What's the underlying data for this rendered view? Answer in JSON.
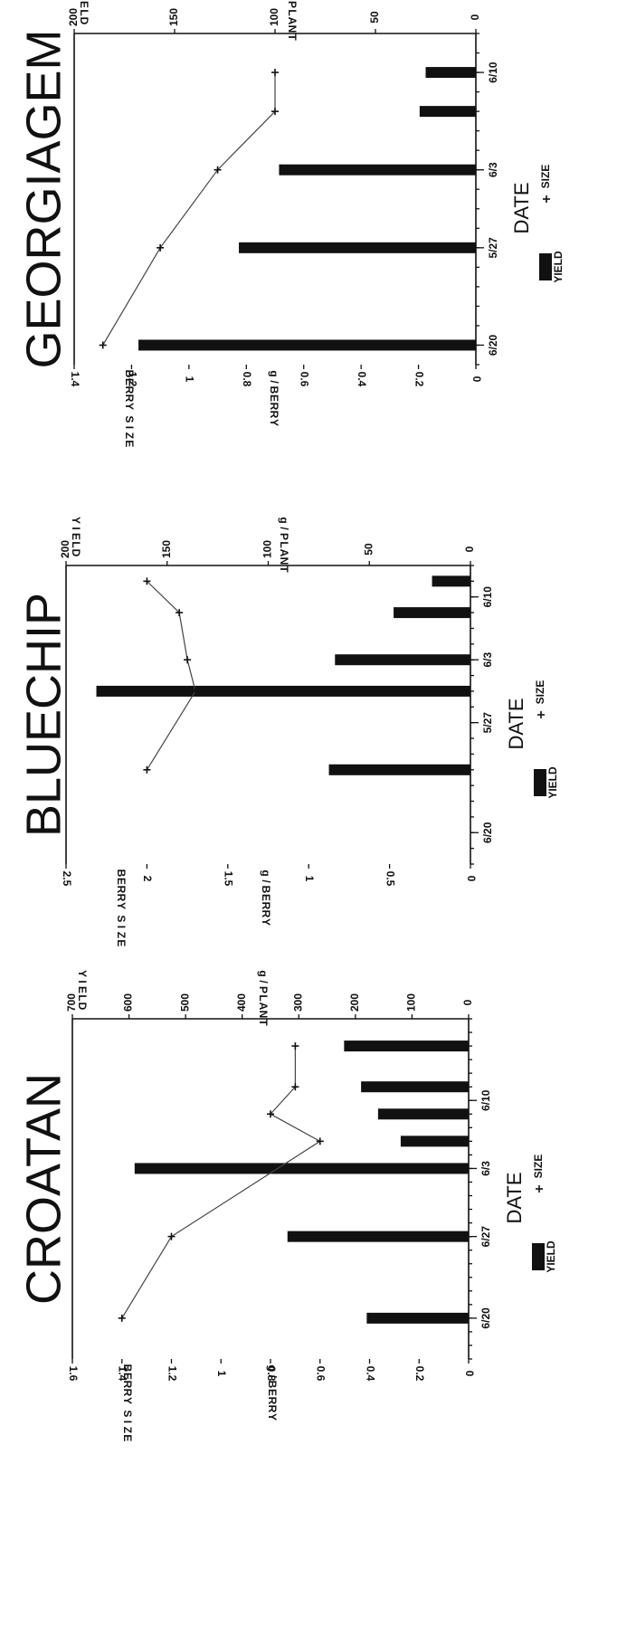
{
  "chart_data": [
    {
      "type": "bar",
      "title": "CROATAN",
      "xlabel": "DATE",
      "x_ticks": [
        "6/20",
        "6/27",
        "6/3",
        "6/10"
      ],
      "dates_days": [
        0,
        6,
        11,
        13,
        15,
        17,
        20
      ],
      "x_range_days": [
        -3,
        22
      ],
      "yield": {
        "label": "YIELD g/PLANT",
        "ticks": [
          0,
          100,
          200,
          300,
          400,
          500,
          600,
          700
        ],
        "ylim": [
          0,
          700
        ],
        "values": [
          180,
          320,
          590,
          120,
          160,
          190,
          220
        ]
      },
      "size": {
        "label": "BERRY SIZE g/BERRY",
        "ticks": [
          0,
          0.2,
          0.4,
          0.6,
          0.8,
          1,
          1.2,
          1.4,
          1.6
        ],
        "ticklabels": [
          "0",
          "0.2",
          "0.4",
          "0.6",
          "0.8",
          "1",
          "1.2",
          "1.4",
          "1.6"
        ],
        "ylim": [
          0,
          1.6
        ],
        "values": [
          1.4,
          1.2,
          null,
          0.6,
          0.8,
          0.7,
          0.7
        ]
      },
      "legend": [
        "YIELD",
        "SIZE"
      ]
    },
    {
      "type": "bar",
      "title": "BLUECHIP",
      "xlabel": "DATE",
      "x_ticks": [
        "6/20",
        "5/27",
        "6/3",
        "6/10"
      ],
      "dates_days": [
        4,
        9,
        11,
        14,
        16
      ],
      "x_range_days": [
        -2,
        17
      ],
      "yield": {
        "label": "YIELD g/PLANT",
        "ticks": [
          0,
          50,
          100,
          150,
          200
        ],
        "ylim": [
          0,
          200
        ],
        "values": [
          70,
          185,
          67,
          38,
          19
        ]
      },
      "size": {
        "label": "BERRY SIZE g/BERRY",
        "ticks": [
          0,
          0.5,
          1,
          1.5,
          2,
          2.5
        ],
        "ticklabels": [
          "0",
          "0.5",
          "1",
          "1.5",
          "2",
          "2.5"
        ],
        "ylim": [
          0,
          2.5
        ],
        "values": [
          2.0,
          1.7,
          1.75,
          1.8,
          2.0
        ]
      },
      "legend": [
        "YIELD",
        "SIZE"
      ]
    },
    {
      "type": "bar",
      "title": "GEORGIAGEM",
      "xlabel": "DATE",
      "x_ticks": [
        "6/20",
        "5/27",
        "6/3",
        "6/10"
      ],
      "dates_days": [
        0,
        5,
        9,
        12,
        14
      ],
      "x_range_days": [
        -1,
        16
      ],
      "yield": {
        "label": "YIELD g/PLANT",
        "ticks": [
          0,
          50,
          100,
          150,
          200
        ],
        "ylim": [
          0,
          200
        ],
        "values": [
          168,
          118,
          98,
          28,
          25
        ]
      },
      "size": {
        "label": "BERRY SIZE g/BERRY",
        "ticks": [
          0,
          0.2,
          0.4,
          0.6,
          0.8,
          1,
          1.2,
          1.4
        ],
        "ticklabels": [
          "0",
          "0.2",
          "0.4",
          "0.6",
          "0.8",
          "1",
          "1.2",
          "1.4"
        ],
        "ylim": [
          0,
          1.4
        ],
        "values": [
          1.3,
          1.1,
          0.9,
          0.7,
          0.7
        ]
      },
      "legend": [
        "YIELD",
        "SIZE"
      ]
    }
  ]
}
